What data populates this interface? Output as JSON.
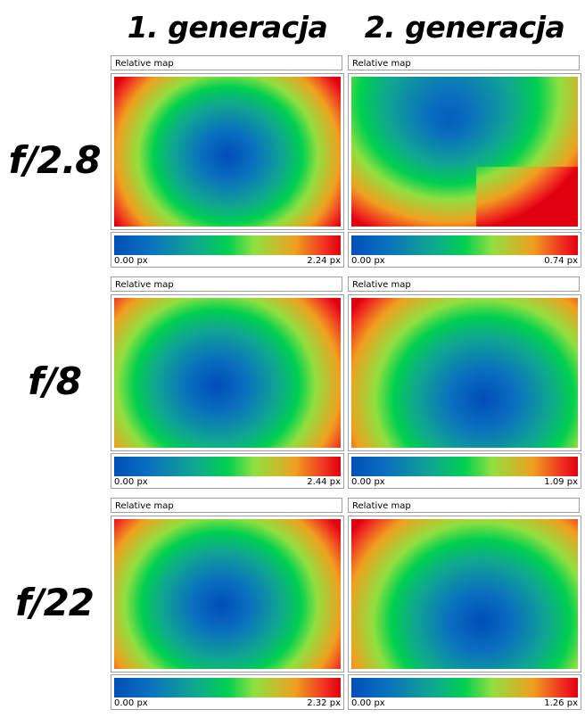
{
  "columns": [
    "1. generacja",
    "2. generacja"
  ],
  "rows": [
    "f/2.8",
    "f/8",
    "f/22"
  ],
  "colormap": [
    "#0050b8",
    "#10a890",
    "#00d050",
    "#90e040",
    "#f0a020",
    "#f03020",
    "#e00010"
  ],
  "chart_data": [
    {
      "type": "heatmap",
      "title": "Relative map",
      "generation": "1. generacja",
      "aperture": "f/2.8",
      "min_label": "0.00 px",
      "max_label": "2.24 px",
      "min": 0.0,
      "max": 2.24,
      "center": [
        0.5,
        0.52
      ]
    },
    {
      "type": "heatmap",
      "title": "Relative map",
      "generation": "2. generacja",
      "aperture": "f/2.8",
      "min_label": "0.00 px",
      "max_label": "0.74 px",
      "min": 0.0,
      "max": 0.74,
      "center": [
        0.43,
        0.3
      ]
    },
    {
      "type": "heatmap",
      "title": "Relative map",
      "generation": "1. generacja",
      "aperture": "f/8",
      "min_label": "0.00 px",
      "max_label": "2.44 px",
      "min": 0.0,
      "max": 2.44,
      "center": [
        0.45,
        0.58
      ]
    },
    {
      "type": "heatmap",
      "title": "Relative map",
      "generation": "2. generacja",
      "aperture": "f/8",
      "min_label": "0.00 px",
      "max_label": "1.09 px",
      "min": 0.0,
      "max": 1.09,
      "center": [
        0.58,
        0.67
      ]
    },
    {
      "type": "heatmap",
      "title": "Relative map",
      "generation": "1. generacja",
      "aperture": "f/22",
      "min_label": "0.00 px",
      "max_label": "2.32 px",
      "min": 0.0,
      "max": 2.32,
      "center": [
        0.47,
        0.57
      ]
    },
    {
      "type": "heatmap",
      "title": "Relative map",
      "generation": "2. generacja",
      "aperture": "f/22",
      "min_label": "0.00 px",
      "max_label": "1.26 px",
      "min": 0.0,
      "max": 1.26,
      "center": [
        0.57,
        0.68
      ]
    }
  ]
}
